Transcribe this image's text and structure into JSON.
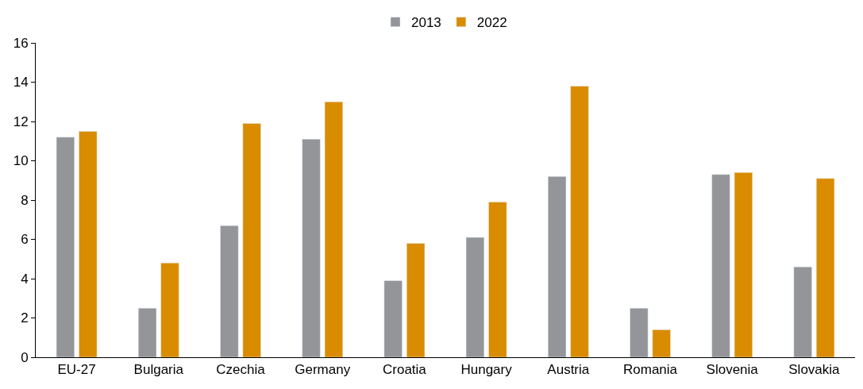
{
  "chart_data": {
    "type": "bar",
    "categories": [
      "EU-27",
      "Bulgaria",
      "Czechia",
      "Germany",
      "Croatia",
      "Hungary",
      "Austria",
      "Romania",
      "Slovenia",
      "Slovakia"
    ],
    "series": [
      {
        "name": "2013",
        "color": "#939598",
        "values": [
          11.2,
          2.5,
          6.7,
          11.1,
          3.9,
          6.1,
          9.2,
          2.5,
          9.3,
          4.6
        ]
      },
      {
        "name": "2022",
        "color": "#d98c00",
        "values": [
          11.5,
          4.8,
          11.9,
          13.0,
          5.8,
          7.9,
          13.8,
          1.4,
          9.4,
          9.1
        ]
      }
    ],
    "ylim": [
      0,
      16
    ],
    "yticks": [
      0,
      2,
      4,
      6,
      8,
      10,
      12,
      14,
      16
    ],
    "legend": "top"
  }
}
